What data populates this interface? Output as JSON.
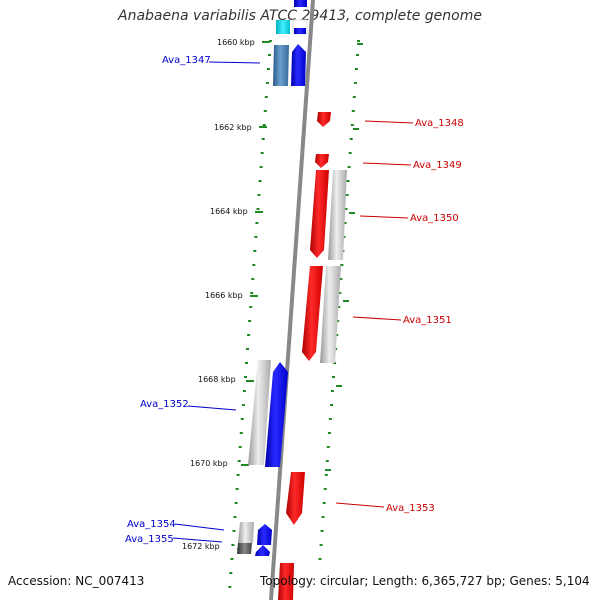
{
  "title": "Anabaena variabilis ATCC 29413, complete genome",
  "accession": "Accession: NC_007413",
  "topology": "Topology: circular; Length: 6,365,727 bp; Genes: 5,104",
  "colors": {
    "forward": "#0000ee",
    "reverse": "#ee0000",
    "axis": "#888888",
    "ticks": "#228822"
  },
  "ticks": [
    "1660 kbp",
    "1662 kbp",
    "1664 kbp",
    "1666 kbp",
    "1668 kbp",
    "1670 kbp",
    "1672 kbp"
  ],
  "genes": {
    "forward": [
      "Ava_1347",
      "Ava_1352",
      "Ava_1354",
      "Ava_1355"
    ],
    "reverse": [
      "Ava_1348",
      "Ava_1349",
      "Ava_1350",
      "Ava_1351",
      "Ava_1353"
    ]
  }
}
